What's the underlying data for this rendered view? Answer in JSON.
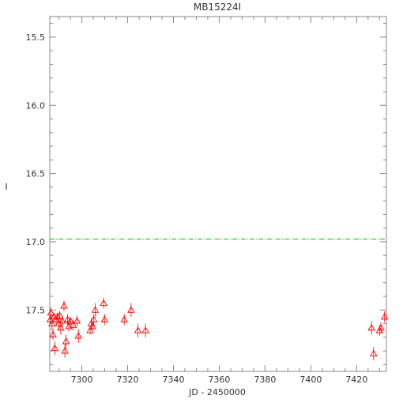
{
  "chart_data": {
    "type": "scatter",
    "title": "MB15224I",
    "xlabel": "JD - 2450000",
    "ylabel": "I",
    "xlim": [
      7286,
      7433
    ],
    "ylim": [
      17.95,
      15.35
    ],
    "y_inverted": true,
    "x_ticks": [
      7300,
      7320,
      7340,
      7360,
      7380,
      7400,
      7420
    ],
    "x_tick_labels": [
      "7300",
      "7320",
      "7340",
      "7360",
      "7380",
      "7400",
      "7420"
    ],
    "y_ticks": [
      15.5,
      16.0,
      16.5,
      17.0,
      17.5
    ],
    "y_tick_labels": [
      "15.5",
      "16.0",
      "16.5",
      "17.0",
      "17.5"
    ],
    "grid": false,
    "reference_line": {
      "y": 16.98,
      "color": "#00c000",
      "style": "dash-dot"
    },
    "marker": "triangle",
    "marker_color": "#ff0000",
    "points": [
      {
        "x": 7286.2,
        "y": 17.57,
        "err": 0.03
      },
      {
        "x": 7286.5,
        "y": 17.52,
        "err": 0.04
      },
      {
        "x": 7287.0,
        "y": 17.6,
        "err": 0.05
      },
      {
        "x": 7287.4,
        "y": 17.68,
        "err": 0.04
      },
      {
        "x": 7287.8,
        "y": 17.55,
        "err": 0.03
      },
      {
        "x": 7288.2,
        "y": 17.78,
        "err": 0.05
      },
      {
        "x": 7288.8,
        "y": 17.57,
        "err": 0.03
      },
      {
        "x": 7289.3,
        "y": 17.55,
        "err": 0.03
      },
      {
        "x": 7289.9,
        "y": 17.6,
        "err": 0.04
      },
      {
        "x": 7290.3,
        "y": 17.54,
        "err": 0.03
      },
      {
        "x": 7290.8,
        "y": 17.63,
        "err": 0.05
      },
      {
        "x": 7291.5,
        "y": 17.58,
        "err": 0.04
      },
      {
        "x": 7292.2,
        "y": 17.47,
        "err": 0.04
      },
      {
        "x": 7292.6,
        "y": 17.8,
        "err": 0.05
      },
      {
        "x": 7293.1,
        "y": 17.73,
        "err": 0.05
      },
      {
        "x": 7293.8,
        "y": 17.57,
        "err": 0.04
      },
      {
        "x": 7294.3,
        "y": 17.62,
        "err": 0.04
      },
      {
        "x": 7295.0,
        "y": 17.58,
        "err": 0.03
      },
      {
        "x": 7296.2,
        "y": 17.61,
        "err": 0.04
      },
      {
        "x": 7297.9,
        "y": 17.58,
        "err": 0.04
      },
      {
        "x": 7298.5,
        "y": 17.69,
        "err": 0.05
      },
      {
        "x": 7303.6,
        "y": 17.65,
        "err": 0.03
      },
      {
        "x": 7304.1,
        "y": 17.6,
        "err": 0.04
      },
      {
        "x": 7304.6,
        "y": 17.62,
        "err": 0.03
      },
      {
        "x": 7305.2,
        "y": 17.57,
        "err": 0.04
      },
      {
        "x": 7305.8,
        "y": 17.5,
        "err": 0.05
      },
      {
        "x": 7309.5,
        "y": 17.45,
        "err": 0.04
      },
      {
        "x": 7309.9,
        "y": 17.57,
        "err": 0.04
      },
      {
        "x": 7318.5,
        "y": 17.57,
        "err": 0.04
      },
      {
        "x": 7321.5,
        "y": 17.5,
        "err": 0.05
      },
      {
        "x": 7324.5,
        "y": 17.65,
        "err": 0.05
      },
      {
        "x": 7327.8,
        "y": 17.65,
        "err": 0.05
      },
      {
        "x": 7426.5,
        "y": 17.63,
        "err": 0.05
      },
      {
        "x": 7427.4,
        "y": 17.82,
        "err": 0.05
      },
      {
        "x": 7430.0,
        "y": 17.65,
        "err": 0.04
      },
      {
        "x": 7430.6,
        "y": 17.63,
        "err": 0.04
      },
      {
        "x": 7432.2,
        "y": 17.55,
        "err": 0.04
      }
    ]
  }
}
